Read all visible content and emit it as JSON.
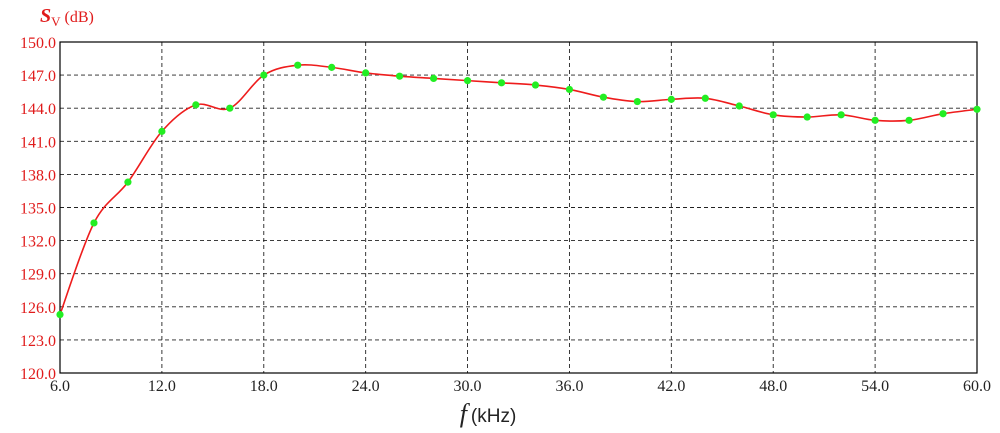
{
  "chart_data": {
    "type": "line",
    "ylabel": {
      "symbol": "S",
      "subscript": "V",
      "unit": "(dB)"
    },
    "xlabel": {
      "symbol": "f",
      "unit": "(kHz)"
    },
    "xlim": [
      6.0,
      60.0
    ],
    "ylim": [
      120.0,
      150.0
    ],
    "x_ticks": [
      "6.0",
      "12.0",
      "18.0",
      "24.0",
      "30.0",
      "36.0",
      "42.0",
      "48.0",
      "54.0",
      "60.0"
    ],
    "y_ticks": [
      "120.0",
      "123.0",
      "126.0",
      "129.0",
      "132.0",
      "135.0",
      "138.0",
      "141.0",
      "144.0",
      "147.0",
      "150.0"
    ],
    "grid": true,
    "line_color": "#ee1c1c",
    "marker_color": "#22ee22",
    "axis_label_color": "#e01b1b",
    "series": [
      {
        "x": [
          6,
          8,
          10,
          12,
          14,
          16,
          18,
          20,
          22,
          24,
          26,
          28,
          30,
          32,
          34,
          36,
          38,
          40,
          42,
          44,
          46,
          48,
          50,
          52,
          54,
          56,
          58,
          60
        ],
        "values": [
          125.3,
          133.6,
          137.3,
          141.9,
          144.3,
          144.0,
          147.0,
          147.9,
          147.7,
          147.2,
          146.9,
          146.7,
          146.5,
          146.3,
          146.1,
          145.7,
          145.0,
          144.6,
          144.8,
          144.9,
          144.2,
          143.4,
          143.2,
          143.4,
          142.9,
          142.9,
          143.5,
          143.9
        ]
      }
    ]
  }
}
